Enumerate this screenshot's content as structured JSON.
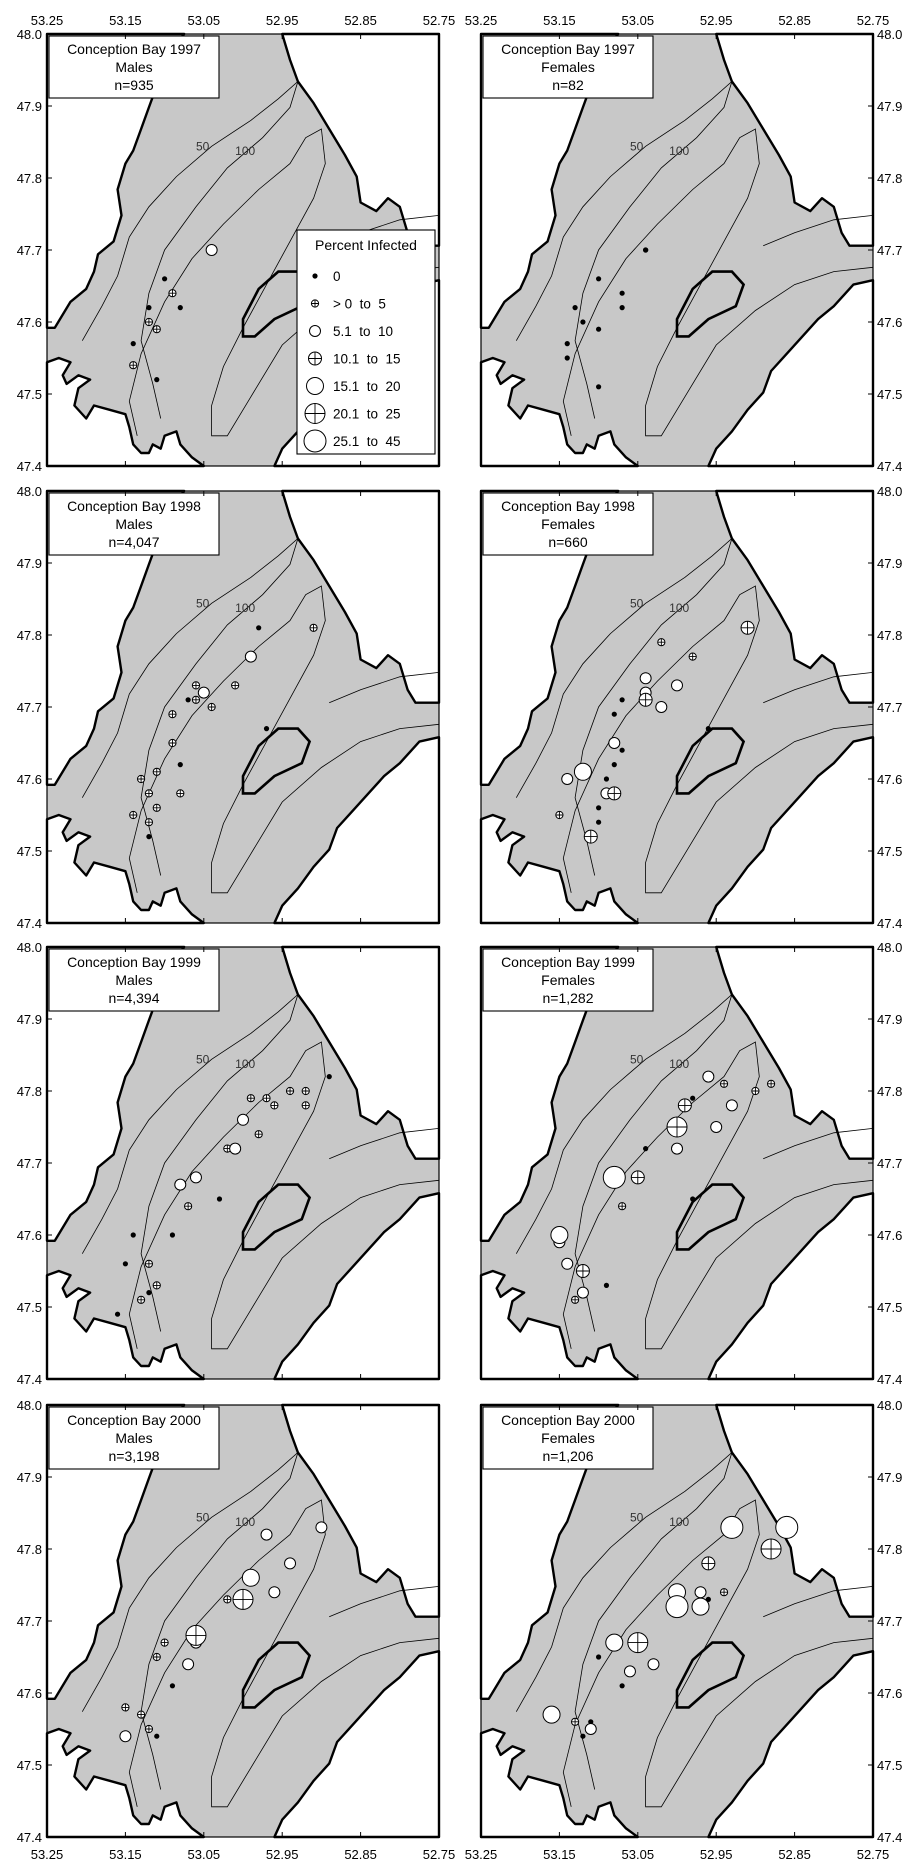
{
  "figure": {
    "x_ticks": [
      "53.25",
      "53.15",
      "53.05",
      "52.95",
      "52.85",
      "52.75"
    ],
    "y_ticks": [
      "48.0",
      "47.9",
      "47.8",
      "47.7",
      "47.6",
      "47.5",
      "47.4"
    ],
    "contour_labels": [
      "50",
      "100"
    ],
    "legend": {
      "title": "Percent Infected",
      "items": [
        {
          "label": "0",
          "symbol": "dot"
        },
        {
          "label": "> 0  to  5",
          "symbol": "tiny-cross"
        },
        {
          "label": "5.1  to  10",
          "symbol": "small-circle"
        },
        {
          "label": "10.1  to  15",
          "symbol": "small-cross"
        },
        {
          "label": "15.1  to  20",
          "symbol": "medium-circle"
        },
        {
          "label": "20.1  to  25",
          "symbol": "medium-cross"
        },
        {
          "label": "25.1  to  45",
          "symbol": "large-circle"
        }
      ]
    },
    "panels": [
      {
        "title": "Conception Bay 1997",
        "sex": "Males",
        "n": "n=935"
      },
      {
        "title": "Conception Bay 1997",
        "sex": "Females",
        "n": "n=82"
      },
      {
        "title": "Conception Bay 1998",
        "sex": "Males",
        "n": "n=4,047"
      },
      {
        "title": "Conception Bay 1998",
        "sex": "Females",
        "n": "n=660"
      },
      {
        "title": "Conception Bay 1999",
        "sex": "Males",
        "n": "n=4,394"
      },
      {
        "title": "Conception Bay 1999",
        "sex": "Females",
        "n": "n=1,282"
      },
      {
        "title": "Conception Bay 2000",
        "sex": "Males",
        "n": "n=3,198"
      },
      {
        "title": "Conception Bay 2000",
        "sex": "Females",
        "n": "n=1,206"
      }
    ]
  },
  "chart_data": {
    "type": "scatter",
    "xlim": [
      53.25,
      52.75
    ],
    "ylim": [
      47.4,
      48.0
    ],
    "size_classes": [
      "0",
      "> 0  to  5",
      "5.1  to  10",
      "10.1  to  15",
      "15.1  to  20",
      "20.1  to  25",
      "25.1  to  45"
    ],
    "panels": [
      {
        "title": "Conception Bay 1997",
        "sex": "Males",
        "n": "n=935",
        "points": [
          [
            53.1,
            47.66,
            0
          ],
          [
            53.12,
            47.62,
            0
          ],
          [
            53.14,
            47.57,
            0
          ],
          [
            53.08,
            47.62,
            0
          ],
          [
            53.11,
            47.52,
            0
          ],
          [
            53.04,
            47.7,
            2
          ],
          [
            53.09,
            47.64,
            1
          ],
          [
            53.12,
            47.6,
            1
          ],
          [
            53.11,
            47.59,
            1
          ],
          [
            53.14,
            47.54,
            1
          ]
        ]
      },
      {
        "title": "Conception Bay 1997",
        "sex": "Females",
        "n": "n=82",
        "points": [
          [
            53.04,
            47.7,
            0
          ],
          [
            53.04,
            47.7,
            0
          ],
          [
            53.1,
            47.66,
            0
          ],
          [
            53.07,
            47.64,
            0
          ],
          [
            53.07,
            47.62,
            0
          ],
          [
            53.13,
            47.62,
            0
          ],
          [
            53.12,
            47.6,
            0
          ],
          [
            53.1,
            47.59,
            0
          ],
          [
            53.14,
            47.57,
            0
          ],
          [
            53.14,
            47.55,
            0
          ],
          [
            53.1,
            47.51,
            0
          ]
        ]
      },
      {
        "title": "Conception Bay 1998",
        "sex": "Males",
        "n": "n=4,047",
        "points": [
          [
            52.98,
            47.81,
            0
          ],
          [
            53.07,
            47.71,
            0
          ],
          [
            53.08,
            47.62,
            0
          ],
          [
            52.97,
            47.67,
            0
          ],
          [
            53.14,
            47.55,
            0
          ],
          [
            53.12,
            47.52,
            0
          ],
          [
            52.91,
            47.81,
            1
          ],
          [
            53.06,
            47.73,
            1
          ],
          [
            53.06,
            47.71,
            1
          ],
          [
            53.09,
            47.69,
            1
          ],
          [
            53.01,
            47.73,
            1
          ],
          [
            53.04,
            47.7,
            1
          ],
          [
            53.09,
            47.65,
            1
          ],
          [
            53.11,
            47.61,
            1
          ],
          [
            53.13,
            47.6,
            1
          ],
          [
            53.12,
            47.58,
            1
          ],
          [
            53.08,
            47.58,
            1
          ],
          [
            53.11,
            47.56,
            1
          ],
          [
            53.14,
            47.55,
            1
          ],
          [
            53.12,
            47.54,
            1
          ],
          [
            52.99,
            47.77,
            2
          ],
          [
            53.05,
            47.72,
            2
          ]
        ]
      },
      {
        "title": "Conception Bay 1998",
        "sex": "Females",
        "n": "n=660",
        "points": [
          [
            53.07,
            47.71,
            0
          ],
          [
            53.08,
            47.69,
            0
          ],
          [
            53.07,
            47.64,
            0
          ],
          [
            53.09,
            47.6,
            0
          ],
          [
            53.1,
            47.56,
            0
          ],
          [
            53.1,
            47.54,
            0
          ],
          [
            52.96,
            47.67,
            0
          ],
          [
            53.08,
            47.62,
            0
          ],
          [
            52.98,
            47.77,
            1
          ],
          [
            53.15,
            47.55,
            1
          ],
          [
            53.02,
            47.79,
            1
          ],
          [
            53.04,
            47.74,
            2
          ],
          [
            53.0,
            47.73,
            2
          ],
          [
            53.02,
            47.7,
            2
          ],
          [
            53.08,
            47.65,
            2
          ],
          [
            53.14,
            47.6,
            2
          ],
          [
            53.09,
            47.58,
            2
          ],
          [
            53.04,
            47.72,
            2
          ],
          [
            52.91,
            47.81,
            3
          ],
          [
            53.04,
            47.71,
            3
          ],
          [
            53.08,
            47.58,
            3
          ],
          [
            53.11,
            47.52,
            3
          ],
          [
            53.12,
            47.61,
            4
          ]
        ]
      },
      {
        "title": "Conception Bay 1999",
        "sex": "Males",
        "n": "n=4,394",
        "points": [
          [
            52.89,
            47.82,
            0
          ],
          [
            53.14,
            47.6,
            0
          ],
          [
            53.15,
            47.56,
            0
          ],
          [
            53.12,
            47.52,
            0
          ],
          [
            53.03,
            47.65,
            0
          ],
          [
            53.09,
            47.6,
            0
          ],
          [
            53.16,
            47.49,
            0
          ],
          [
            52.94,
            47.8,
            1
          ],
          [
            52.96,
            47.78,
            1
          ],
          [
            52.97,
            47.79,
            1
          ],
          [
            52.99,
            47.79,
            1
          ],
          [
            52.92,
            47.78,
            1
          ],
          [
            52.92,
            47.8,
            1
          ],
          [
            53.02,
            47.72,
            1
          ],
          [
            52.98,
            47.74,
            1
          ],
          [
            53.07,
            47.64,
            1
          ],
          [
            53.12,
            47.56,
            1
          ],
          [
            53.11,
            47.53,
            1
          ],
          [
            53.13,
            47.51,
            1
          ],
          [
            53.0,
            47.76,
            2
          ],
          [
            53.01,
            47.72,
            2
          ],
          [
            53.06,
            47.68,
            2
          ],
          [
            53.08,
            47.67,
            2
          ]
        ]
      },
      {
        "title": "Conception Bay 1999",
        "sex": "Females",
        "n": "n=1,282",
        "points": [
          [
            52.98,
            47.79,
            0
          ],
          [
            53.04,
            47.72,
            0
          ],
          [
            52.98,
            47.65,
            0
          ],
          [
            53.09,
            47.53,
            0
          ],
          [
            52.88,
            47.81,
            1
          ],
          [
            52.9,
            47.8,
            1
          ],
          [
            52.94,
            47.81,
            1
          ],
          [
            53.07,
            47.64,
            1
          ],
          [
            53.13,
            47.51,
            1
          ],
          [
            52.96,
            47.82,
            2
          ],
          [
            52.93,
            47.78,
            2
          ],
          [
            52.95,
            47.75,
            2
          ],
          [
            53.0,
            47.72,
            2
          ],
          [
            53.15,
            47.59,
            2
          ],
          [
            53.14,
            47.56,
            2
          ],
          [
            53.12,
            47.52,
            2
          ],
          [
            52.99,
            47.78,
            3
          ],
          [
            53.12,
            47.55,
            3
          ],
          [
            53.15,
            47.6,
            4
          ],
          [
            53.0,
            47.75,
            5
          ],
          [
            53.08,
            47.68,
            6
          ],
          [
            53.05,
            47.68,
            3
          ]
        ]
      },
      {
        "title": "Conception Bay 2000",
        "sex": "Males",
        "n": "n=3,198",
        "points": [
          [
            53.09,
            47.61,
            0
          ],
          [
            53.11,
            47.54,
            0
          ],
          [
            53.02,
            47.73,
            1
          ],
          [
            53.11,
            47.65,
            1
          ],
          [
            53.1,
            47.67,
            1
          ],
          [
            53.15,
            47.58,
            1
          ],
          [
            53.12,
            47.55,
            1
          ],
          [
            53.13,
            47.57,
            1
          ],
          [
            52.97,
            47.82,
            2
          ],
          [
            52.9,
            47.83,
            2
          ],
          [
            52.94,
            47.78,
            2
          ],
          [
            52.96,
            47.74,
            2
          ],
          [
            53.07,
            47.64,
            2
          ],
          [
            53.06,
            47.67,
            2
          ],
          [
            53.15,
            47.54,
            2
          ],
          [
            52.99,
            47.76,
            4
          ],
          [
            53.0,
            47.73,
            3
          ],
          [
            53.06,
            47.68,
            5
          ],
          [
            53.0,
            47.73,
            5
          ]
        ]
      },
      {
        "title": "Conception Bay 2000",
        "sex": "Females",
        "n": "n=1,206",
        "points": [
          [
            52.96,
            47.73,
            0
          ],
          [
            53.07,
            47.61,
            0
          ],
          [
            53.1,
            47.65,
            0
          ],
          [
            53.11,
            47.56,
            0
          ],
          [
            53.12,
            47.54,
            0
          ],
          [
            52.94,
            47.74,
            1
          ],
          [
            53.13,
            47.56,
            1
          ],
          [
            53.03,
            47.64,
            2
          ],
          [
            53.06,
            47.63,
            2
          ],
          [
            52.97,
            47.74,
            2
          ],
          [
            53.11,
            47.55,
            2
          ],
          [
            52.96,
            47.78,
            3
          ],
          [
            53.0,
            47.74,
            4
          ],
          [
            53.08,
            47.67,
            4
          ],
          [
            53.05,
            47.67,
            4
          ],
          [
            53.16,
            47.57,
            4
          ],
          [
            52.97,
            47.72,
            4
          ],
          [
            52.88,
            47.8,
            5
          ],
          [
            53.05,
            47.67,
            5
          ],
          [
            52.93,
            47.83,
            6
          ],
          [
            52.86,
            47.83,
            6
          ],
          [
            53.0,
            47.72,
            6
          ]
        ]
      }
    ]
  }
}
